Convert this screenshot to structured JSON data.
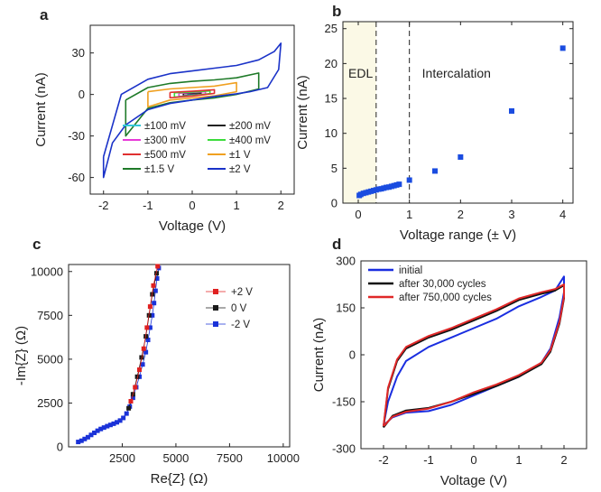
{
  "chart_data": [
    {
      "panel": "a",
      "type": "line",
      "title": "",
      "xlabel": "Voltage (V)",
      "ylabel": "Current (nA)",
      "xlim": [
        -2.3,
        2.3
      ],
      "ylim": [
        -72,
        50
      ],
      "xticks": [
        -2,
        -1,
        0,
        1,
        2
      ],
      "yticks": [
        -60,
        -30,
        0,
        30
      ],
      "legend_position": "bottom-center",
      "series": [
        {
          "name": "±100 mV",
          "color": "#33c8d8",
          "vmax": 0.1,
          "upper": [
            [
              -0.1,
              0.3
            ],
            [
              0,
              0.4
            ],
            [
              0.1,
              0.6
            ]
          ],
          "lower": [
            [
              0.1,
              0.1
            ],
            [
              0,
              -0.2
            ],
            [
              -0.1,
              -0.4
            ]
          ]
        },
        {
          "name": "±200 mV",
          "color": "#222222",
          "vmax": 0.2,
          "upper": [
            [
              -0.2,
              0.6
            ],
            [
              0,
              0.9
            ],
            [
              0.2,
              1.3
            ]
          ],
          "lower": [
            [
              0.2,
              0.3
            ],
            [
              0,
              -0.4
            ],
            [
              -0.2,
              -0.9
            ]
          ]
        },
        {
          "name": "±300 mV",
          "color": "#e83ad8",
          "vmax": 0.3,
          "upper": [
            [
              -0.3,
              0.9
            ],
            [
              0,
              1.4
            ],
            [
              0.3,
              2.0
            ]
          ],
          "lower": [
            [
              0.3,
              0.4
            ],
            [
              0,
              -0.7
            ],
            [
              -0.3,
              -1.4
            ]
          ]
        },
        {
          "name": "±400 mV",
          "color": "#3cdc3c",
          "vmax": 0.4,
          "upper": [
            [
              -0.4,
              1.2
            ],
            [
              0,
              1.8
            ],
            [
              0.4,
              2.6
            ]
          ],
          "lower": [
            [
              0.4,
              0.6
            ],
            [
              0,
              -0.9
            ],
            [
              -0.4,
              -1.9
            ]
          ]
        },
        {
          "name": "±500 mV",
          "color": "#e03030",
          "vmax": 0.5,
          "upper": [
            [
              -0.5,
              1.5
            ],
            [
              0,
              2.3
            ],
            [
              0.5,
              3.4
            ]
          ],
          "lower": [
            [
              0.5,
              0.8
            ],
            [
              0,
              -1.2
            ],
            [
              -0.5,
              -2.4
            ]
          ]
        },
        {
          "name": "±1 V",
          "color": "#f0a020",
          "vmax": 1.0,
          "upper": [
            [
              -1,
              2
            ],
            [
              -0.5,
              4
            ],
            [
              0,
              5
            ],
            [
              0.5,
              6
            ],
            [
              1,
              8.5
            ]
          ],
          "lower": [
            [
              1,
              2
            ],
            [
              0.5,
              -1
            ],
            [
              0,
              -2.5
            ],
            [
              -0.5,
              -4
            ],
            [
              -1,
              -9
            ]
          ]
        },
        {
          "name": "±1.5 V",
          "color": "#1e7a28",
          "vmax": 1.5,
          "upper": [
            [
              -1.5,
              -4
            ],
            [
              -1,
              5
            ],
            [
              -0.5,
              8
            ],
            [
              0,
              9.5
            ],
            [
              0.5,
              10.5
            ],
            [
              1,
              12
            ],
            [
              1.5,
              15.5
            ]
          ],
          "lower": [
            [
              1.5,
              4
            ],
            [
              1,
              0
            ],
            [
              0.5,
              -2.5
            ],
            [
              0,
              -4
            ],
            [
              -0.5,
              -6
            ],
            [
              -1,
              -10
            ],
            [
              -1.5,
              -30
            ]
          ]
        },
        {
          "name": "±2 V",
          "color": "#1a32c8",
          "vmax": 2.0,
          "upper": [
            [
              -2,
              -45
            ],
            [
              -1.6,
              0
            ],
            [
              -1,
              11
            ],
            [
              -0.5,
              15
            ],
            [
              0,
              17
            ],
            [
              0.5,
              19
            ],
            [
              1,
              21
            ],
            [
              1.5,
              25
            ],
            [
              1.85,
              31
            ],
            [
              2,
              37
            ]
          ],
          "lower": [
            [
              2,
              37
            ],
            [
              1.95,
              18
            ],
            [
              1.7,
              5
            ],
            [
              1.3,
              2
            ],
            [
              1,
              0.5
            ],
            [
              0.5,
              -1.5
            ],
            [
              0,
              -4
            ],
            [
              -0.5,
              -6.5
            ],
            [
              -1,
              -11
            ],
            [
              -1.5,
              -22
            ],
            [
              -1.8,
              -35
            ],
            [
              -2,
              -60
            ]
          ]
        }
      ]
    },
    {
      "panel": "b",
      "type": "scatter",
      "title": "",
      "xlabel": "Voltage range (± V)",
      "ylabel": "Current (nA)",
      "xlim": [
        -0.3,
        4.2
      ],
      "ylim": [
        0,
        26
      ],
      "xticks": [
        0,
        1,
        2,
        3,
        4
      ],
      "yticks": [
        0,
        5,
        10,
        15,
        20,
        25
      ],
      "regions": [
        {
          "label": "EDL",
          "from": -0.3,
          "to": 0.35,
          "fill": "#fbf9e6"
        },
        {
          "label": "Intercalation",
          "from": 1.0,
          "to": 4.2
        }
      ],
      "vlines": [
        0.35,
        1.0
      ],
      "color": "#1a4ce0",
      "points": [
        [
          0.02,
          1.1
        ],
        [
          0.05,
          1.25
        ],
        [
          0.1,
          1.4
        ],
        [
          0.15,
          1.5
        ],
        [
          0.2,
          1.6
        ],
        [
          0.25,
          1.7
        ],
        [
          0.3,
          1.8
        ],
        [
          0.35,
          1.9
        ],
        [
          0.4,
          2.0
        ],
        [
          0.45,
          2.05
        ],
        [
          0.5,
          2.15
        ],
        [
          0.55,
          2.25
        ],
        [
          0.6,
          2.3
        ],
        [
          0.65,
          2.4
        ],
        [
          0.7,
          2.5
        ],
        [
          0.75,
          2.6
        ],
        [
          0.8,
          2.7
        ],
        [
          1.0,
          3.3
        ],
        [
          1.5,
          4.6
        ],
        [
          2.0,
          6.6
        ],
        [
          3.0,
          13.2
        ],
        [
          4.0,
          22.2
        ]
      ]
    },
    {
      "panel": "c",
      "type": "scatter",
      "title": "",
      "xlabel": "Re{Z} (Ω)",
      "ylabel": "-Im{Z} (Ω)",
      "xlim": [
        0,
        10300
      ],
      "ylim": [
        0,
        10400
      ],
      "xticks": [
        2500,
        5000,
        7500,
        10000
      ],
      "yticks": [
        0,
        2500,
        5000,
        7500,
        10000
      ],
      "legend_position": "top-right",
      "series": [
        {
          "name": "+2 V",
          "color": "#e02020",
          "points": [
            [
              2900,
              2600
            ],
            [
              3100,
              3400
            ],
            [
              3300,
              4400
            ],
            [
              3500,
              5600
            ],
            [
              3650,
              6800
            ],
            [
              3800,
              8000
            ],
            [
              3950,
              9200
            ],
            [
              4150,
              10300
            ]
          ]
        },
        {
          "name": "0 V",
          "color": "#1a1a1a",
          "points": [
            [
              2800,
              2200
            ],
            [
              3000,
              3000
            ],
            [
              3200,
              4000
            ],
            [
              3400,
              5100
            ],
            [
              3600,
              6300
            ],
            [
              3750,
              7500
            ],
            [
              3900,
              8700
            ],
            [
              4100,
              9900
            ]
          ]
        },
        {
          "name": "-2 V",
          "color": "#1a32d8",
          "points": [
            [
              450,
              280
            ],
            [
              600,
              350
            ],
            [
              750,
              450
            ],
            [
              900,
              550
            ],
            [
              1050,
              680
            ],
            [
              1200,
              800
            ],
            [
              1350,
              920
            ],
            [
              1500,
              1020
            ],
            [
              1650,
              1100
            ],
            [
              1800,
              1180
            ],
            [
              1950,
              1250
            ],
            [
              2100,
              1320
            ],
            [
              2250,
              1400
            ],
            [
              2400,
              1500
            ],
            [
              2550,
              1650
            ],
            [
              2700,
              1900
            ],
            [
              2850,
              2300
            ],
            [
              3000,
              2800
            ],
            [
              3150,
              3400
            ],
            [
              3300,
              4000
            ],
            [
              3450,
              4700
            ],
            [
              3600,
              5400
            ],
            [
              3700,
              6100
            ],
            [
              3800,
              6800
            ],
            [
              3900,
              7500
            ],
            [
              3980,
              8200
            ],
            [
              4050,
              8900
            ],
            [
              4120,
              9600
            ],
            [
              4200,
              10200
            ]
          ]
        }
      ]
    },
    {
      "panel": "d",
      "type": "line",
      "title": "",
      "xlabel": "Voltage (V)",
      "ylabel": "Current (nA)",
      "xlim": [
        -2.5,
        2.5
      ],
      "ylim": [
        -300,
        300
      ],
      "xticks": [
        -2,
        -1.5,
        -1,
        -0.5,
        0,
        0.5,
        1,
        1.5,
        2
      ],
      "xticklabels": [
        "-2",
        "",
        "-1",
        "",
        "0",
        "",
        "1",
        "",
        "2"
      ],
      "yticks": [
        -300,
        -150,
        0,
        150,
        300
      ],
      "legend_position": "top-left",
      "series": [
        {
          "name": "initial",
          "color": "#1a2ee0",
          "points": [
            [
              -2,
              -225
            ],
            [
              -1.9,
              -150
            ],
            [
              -1.7,
              -70
            ],
            [
              -1.5,
              -20
            ],
            [
              -1,
              25
            ],
            [
              -0.5,
              55
            ],
            [
              0,
              85
            ],
            [
              0.5,
              115
            ],
            [
              1,
              155
            ],
            [
              1.5,
              185
            ],
            [
              1.8,
              205
            ],
            [
              2,
              250
            ],
            [
              2,
              200
            ],
            [
              1.9,
              120
            ],
            [
              1.7,
              20
            ],
            [
              1.5,
              -25
            ],
            [
              1,
              -70
            ],
            [
              0.5,
              -100
            ],
            [
              0,
              -130
            ],
            [
              -0.5,
              -160
            ],
            [
              -1,
              -180
            ],
            [
              -1.5,
              -185
            ],
            [
              -1.8,
              -200
            ],
            [
              -2,
              -225
            ]
          ]
        },
        {
          "name": "after 30,000 cycles",
          "color": "#111111",
          "points": [
            [
              -2,
              -232
            ],
            [
              -1.9,
              -110
            ],
            [
              -1.7,
              -20
            ],
            [
              -1.5,
              20
            ],
            [
              -1,
              55
            ],
            [
              -0.5,
              80
            ],
            [
              0,
              110
            ],
            [
              0.5,
              140
            ],
            [
              1,
              175
            ],
            [
              1.5,
              195
            ],
            [
              1.8,
              205
            ],
            [
              2,
              222
            ],
            [
              2,
              180
            ],
            [
              1.9,
              100
            ],
            [
              1.7,
              10
            ],
            [
              1.5,
              -30
            ],
            [
              1,
              -70
            ],
            [
              0.5,
              -100
            ],
            [
              0,
              -125
            ],
            [
              -0.5,
              -150
            ],
            [
              -1,
              -170
            ],
            [
              -1.5,
              -178
            ],
            [
              -1.8,
              -195
            ],
            [
              -2,
              -232
            ]
          ]
        },
        {
          "name": "after 750,000 cycles",
          "color": "#e02828",
          "points": [
            [
              -2,
              -228
            ],
            [
              -1.9,
              -105
            ],
            [
              -1.7,
              -15
            ],
            [
              -1.5,
              25
            ],
            [
              -1,
              60
            ],
            [
              -0.5,
              85
            ],
            [
              0,
              115
            ],
            [
              0.5,
              145
            ],
            [
              1,
              180
            ],
            [
              1.5,
              200
            ],
            [
              1.8,
              210
            ],
            [
              2,
              225
            ],
            [
              2,
              185
            ],
            [
              1.9,
              105
            ],
            [
              1.7,
              15
            ],
            [
              1.5,
              -25
            ],
            [
              1,
              -65
            ],
            [
              0.5,
              -95
            ],
            [
              0,
              -120
            ],
            [
              -0.5,
              -150
            ],
            [
              -1,
              -172
            ],
            [
              -1.5,
              -182
            ],
            [
              -1.8,
              -198
            ],
            [
              -2,
              -228
            ]
          ]
        }
      ]
    }
  ]
}
